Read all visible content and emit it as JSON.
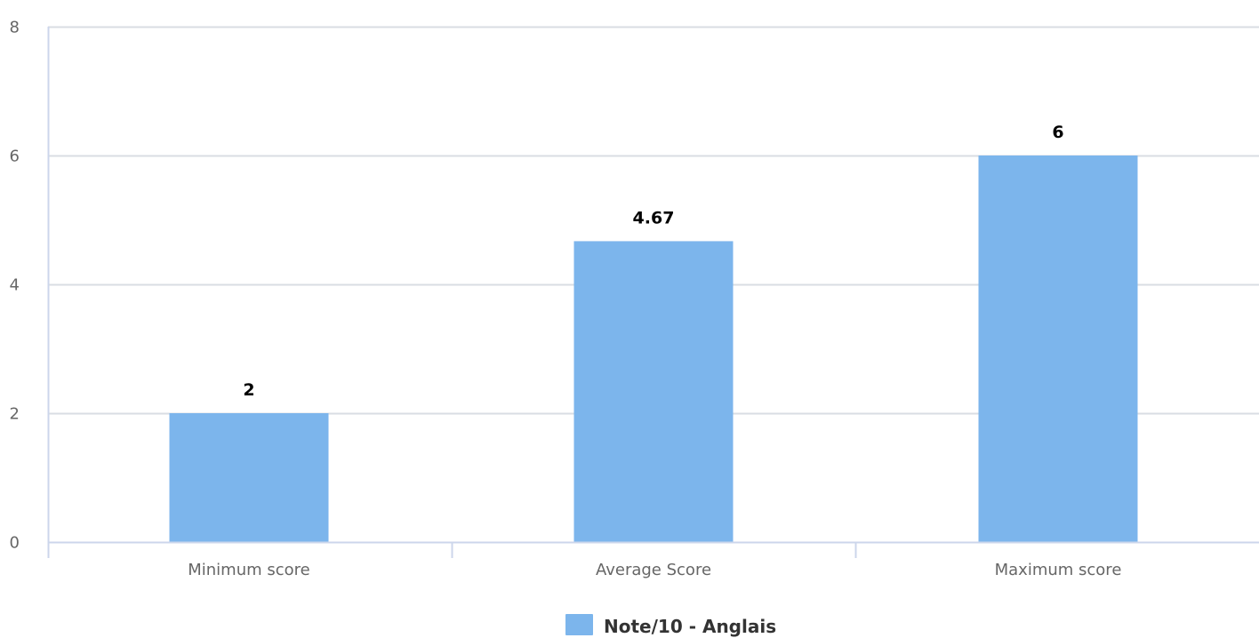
{
  "chart_data": {
    "type": "bar",
    "categories": [
      "Minimum score",
      "Average Score",
      "Maximum score"
    ],
    "series": [
      {
        "name": "Note/10 - Anglais",
        "values": [
          2,
          4.67,
          6
        ],
        "color": "#7cb5ec"
      }
    ],
    "data_labels": [
      "2",
      "4.67",
      "6"
    ],
    "yticks": [
      0,
      2,
      4,
      6,
      8
    ],
    "ylim": [
      0,
      8
    ],
    "title": "",
    "xlabel": "",
    "ylabel": "",
    "grid": true,
    "legend_position": "bottom-center"
  },
  "colors": {
    "bar": "#7cb5ec",
    "grid": "#d9dde3",
    "axis": "#ccd6eb",
    "tick_text": "#666666"
  }
}
